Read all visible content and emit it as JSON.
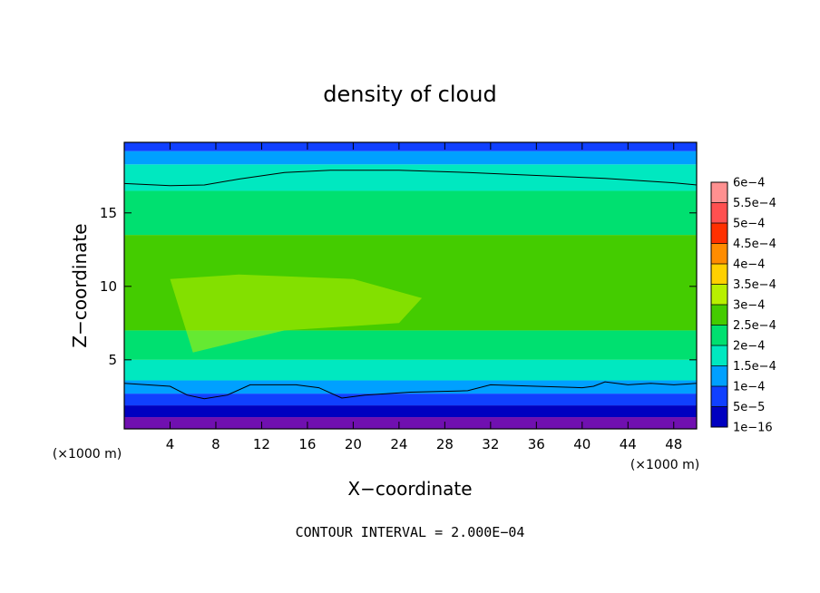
{
  "chart_data": {
    "type": "heatmap",
    "title": "density of cloud",
    "xlabel": "X−coordinate",
    "ylabel": "Z−coordinate",
    "x_unit": "(×1000 m)",
    "z_unit": "(×1000 m)",
    "xlim": [
      0,
      50
    ],
    "ylim": [
      0.3,
      19.8
    ],
    "x_ticks": [
      4,
      8,
      12,
      16,
      20,
      24,
      28,
      32,
      36,
      40,
      44,
      48
    ],
    "y_ticks": [
      5,
      10,
      15
    ],
    "grid": false,
    "colorbar": {
      "placement": "right",
      "labels": [
        "6e−4",
        "5.5e−4",
        "5e−4",
        "4.5e−4",
        "4e−4",
        "3.5e−4",
        "3e−4",
        "2.5e−4",
        "2e−4",
        "1.5e−4",
        "1e−4",
        "5e−5",
        "1e−16"
      ],
      "levels": [
        0.0006,
        0.00055,
        0.0005,
        0.00045,
        0.0004,
        0.00035,
        0.0003,
        0.00025,
        0.0002,
        0.00015,
        0.0001,
        5e-05,
        1e-16
      ],
      "colors": [
        "#ff9090",
        "#ff5050",
        "#ff3000",
        "#ff8c00",
        "#ffd000",
        "#b8f000",
        "#44cc00",
        "#00e070",
        "#00e8c0",
        "#00a0ff",
        "#1040ff",
        "#0000c0",
        "#7010b0"
      ]
    },
    "contour_interval_text": "CONTOUR INTERVAL = 2.000E−04",
    "contour_lines": [
      {
        "level": 0.0002,
        "x": [
          0,
          4,
          7,
          10,
          14,
          18,
          24,
          30,
          36,
          42,
          48,
          50
        ],
        "z": [
          17.0,
          16.85,
          16.9,
          17.3,
          17.75,
          17.9,
          17.9,
          17.75,
          17.55,
          17.35,
          17.05,
          16.9
        ]
      },
      {
        "level": 0.0002,
        "x": [
          0,
          4,
          5.5,
          7,
          9,
          11,
          15,
          17,
          19,
          21,
          25,
          30,
          32,
          36,
          40,
          41,
          42,
          44,
          46,
          48,
          50
        ],
        "z": [
          3.4,
          3.2,
          2.6,
          2.35,
          2.6,
          3.3,
          3.3,
          3.1,
          2.4,
          2.6,
          2.8,
          2.9,
          3.3,
          3.2,
          3.1,
          3.2,
          3.5,
          3.3,
          3.4,
          3.3,
          3.4
        ]
      }
    ],
    "field_regions": [
      {
        "level_index": 12,
        "z_range": [
          0.3,
          1.1
        ]
      },
      {
        "level_index": 11,
        "z_range": [
          1.1,
          1.9
        ]
      },
      {
        "level_index": 10,
        "z_range": [
          1.9,
          2.7
        ]
      },
      {
        "level_index": 9,
        "z_range": [
          2.7,
          3.6
        ]
      },
      {
        "level_index": 8,
        "z_range": [
          3.6,
          5.0
        ]
      },
      {
        "level_index": 7,
        "z_range": [
          5.0,
          7.0
        ]
      },
      {
        "level_index": 6,
        "z_range": [
          7.0,
          13.5
        ]
      },
      {
        "level_index": 7,
        "z_range": [
          13.5,
          16.5
        ]
      },
      {
        "level_index": 8,
        "z_range": [
          16.5,
          18.3
        ]
      },
      {
        "level_index": 9,
        "z_range": [
          18.3,
          19.2
        ]
      },
      {
        "level_index": 10,
        "z_range": [
          19.2,
          19.8
        ]
      }
    ],
    "maxima_region": {
      "level_index": 5,
      "x": [
        4,
        10,
        20,
        26,
        24,
        14,
        6
      ],
      "z": [
        10.5,
        10.8,
        10.5,
        9.2,
        7.5,
        7.0,
        5.5
      ]
    }
  }
}
